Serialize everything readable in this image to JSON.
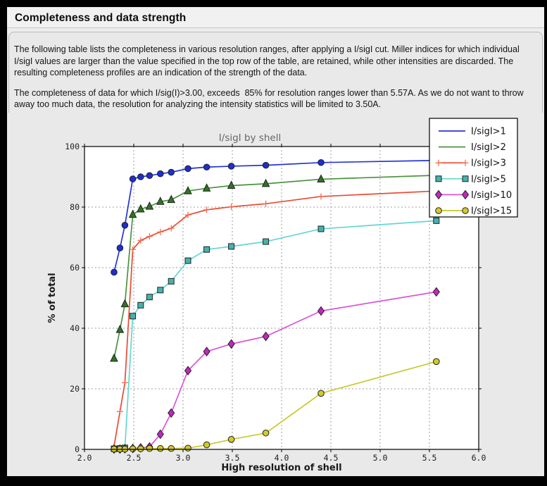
{
  "window": {
    "title": "Completeness and data strength"
  },
  "paragraphs": {
    "p1": "The following table lists the completeness in various resolution ranges, after applying a I/sigI cut. Miller indices for which individual I/sigI values are larger than the value specified in the top row of the table, are retained, while other intensities are discarded. The resulting completeness profiles are an indication of the strength of the data.",
    "p2": "The completeness of data for which I/sig(I)>3.00, exceeds  85% for resolution ranges lower than 5.57A. As we do not want to throw away too much data, the resolution for analyzing the intensity statistics will be limited to 3.50A."
  },
  "chart_data": {
    "type": "line",
    "title": "I/sigI by shell",
    "xlabel": "High resolution of shell",
    "ylabel": "% of total",
    "xlim": [
      2.0,
      6.0
    ],
    "ylim": [
      0,
      100
    ],
    "xticks": [
      2.0,
      2.5,
      3.0,
      3.5,
      4.0,
      4.5,
      5.0,
      5.5,
      6.0
    ],
    "yticks": [
      0,
      20,
      40,
      60,
      80,
      100
    ],
    "grid": true,
    "plot_bg": "#ffffff",
    "figure_bg": "#e9e9e9",
    "legend_position": "top-right",
    "x": [
      2.3,
      2.36,
      2.41,
      2.49,
      2.57,
      2.66,
      2.77,
      2.88,
      3.05,
      3.24,
      3.49,
      3.84,
      4.4,
      5.57
    ],
    "series": [
      {
        "name": "I/sigI>1",
        "marker": "circle",
        "legend_marker": false,
        "line_color": "#2434d6",
        "fill": "#1e2ecf",
        "edge": "#10127e",
        "values": [
          58.5,
          66.5,
          74.0,
          89.3,
          90.0,
          90.4,
          91.0,
          91.5,
          92.7,
          93.2,
          93.5,
          93.8,
          94.7,
          95.4
        ]
      },
      {
        "name": "I/sigI>2",
        "marker": "triangle",
        "legend_marker": false,
        "line_color": "#4a9340",
        "fill": "#2e7520",
        "edge": "#1c4a12",
        "values": [
          30.0,
          39.5,
          48.0,
          77.5,
          79.3,
          80.2,
          81.8,
          82.4,
          85.3,
          86.2,
          87.1,
          87.7,
          89.2,
          90.5
        ]
      },
      {
        "name": "I/sigI>3",
        "marker": "plus",
        "legend_marker": true,
        "line_color": "#ea4a31",
        "fill": "#f26c55",
        "edge": "#f26c55",
        "values": [
          1.0,
          12.5,
          22.0,
          66.0,
          69.0,
          70.3,
          71.8,
          73.0,
          77.4,
          79.1,
          80.1,
          81.1,
          83.5,
          85.3
        ]
      },
      {
        "name": "I/sigI>5",
        "marker": "square",
        "legend_marker": true,
        "line_color": "#62d7d3",
        "fill": "#46b2ac",
        "edge": "#1d6a66",
        "values": [
          0.2,
          0.3,
          0.5,
          44.0,
          47.6,
          50.3,
          52.6,
          55.5,
          62.3,
          66.0,
          67.0,
          68.6,
          72.8,
          75.5
        ]
      },
      {
        "name": "I/sigI>10",
        "marker": "diamond",
        "legend_marker": true,
        "line_color": "#da55d5",
        "fill": "#c227bd",
        "edge": "#7c1879",
        "values": [
          0.1,
          0.1,
          0.2,
          0.3,
          0.5,
          0.8,
          5.0,
          12.0,
          26.0,
          32.3,
          34.8,
          37.3,
          45.7,
          52.0
        ]
      },
      {
        "name": "I/sigI>15",
        "marker": "circle",
        "legend_marker": true,
        "line_color": "#c9c92c",
        "fill": "#d2c92d",
        "edge": "#72721c",
        "values": [
          0.1,
          0.1,
          0.1,
          0.2,
          0.2,
          0.3,
          0.3,
          0.3,
          0.4,
          1.5,
          3.3,
          5.4,
          18.5,
          29.0
        ]
      }
    ]
  }
}
